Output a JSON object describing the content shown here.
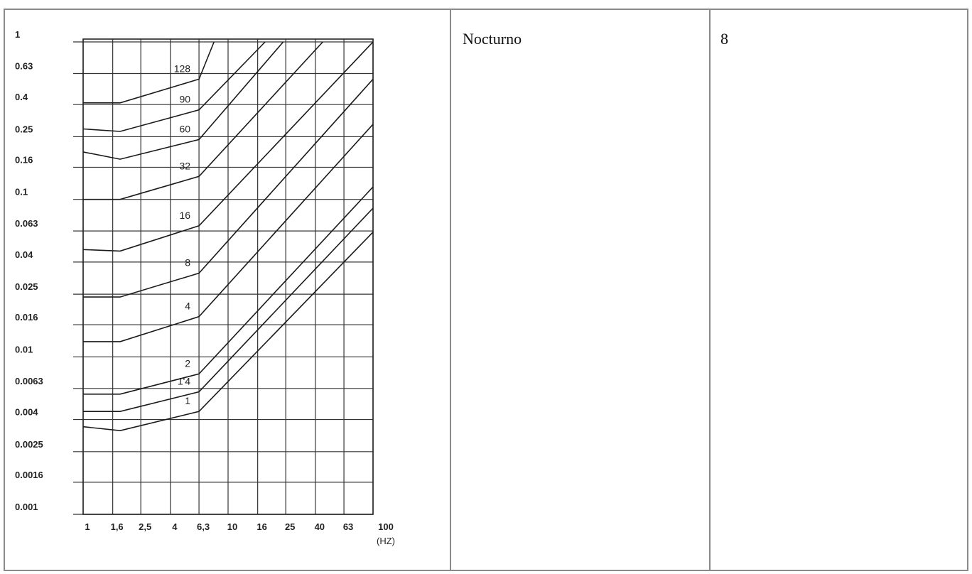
{
  "table": {
    "cells": [
      {
        "text": ""
      },
      {
        "text": "Nocturno"
      },
      {
        "text": "8"
      }
    ]
  },
  "chart_data": {
    "type": "line",
    "xscale": "log",
    "yscale": "log",
    "x_ticks": [
      "1",
      "1,6",
      "2,5",
      "4",
      "6,3",
      "10",
      "16",
      "25",
      "40",
      "63",
      "100"
    ],
    "x_tick_values": [
      1,
      1.6,
      2.5,
      4,
      6.3,
      10,
      16,
      25,
      40,
      63,
      100
    ],
    "y_ticks": [
      "1",
      "0.63",
      "0.4",
      "0.25",
      "0.16",
      "0.1",
      "0.063",
      "0.04",
      "0.025",
      "0.016",
      "0.01",
      "0.0063",
      "0.004",
      "0.0025",
      "0.0016",
      "0.001"
    ],
    "y_tick_values": [
      1,
      0.63,
      0.4,
      0.25,
      0.16,
      0.1,
      0.063,
      0.04,
      0.025,
      0.016,
      0.01,
      0.0063,
      0.004,
      0.0025,
      0.0016,
      0.001
    ],
    "xlim": [
      1,
      100
    ],
    "ylim": [
      0.001,
      1
    ],
    "xlabel": "(HZ)",
    "grid": true,
    "series": [
      {
        "name": "1",
        "points": [
          [
            1,
            0.0036
          ],
          [
            1.8,
            0.0034
          ],
          [
            6.3,
            0.0045
          ],
          [
            100,
            0.062
          ]
        ]
      },
      {
        "name": "1'4",
        "points": [
          [
            1,
            0.0045
          ],
          [
            1.8,
            0.0045
          ],
          [
            6.3,
            0.006
          ],
          [
            100,
            0.088
          ]
        ]
      },
      {
        "name": "2",
        "points": [
          [
            1,
            0.0058
          ],
          [
            1.8,
            0.0058
          ],
          [
            6.3,
            0.0078
          ],
          [
            100,
            0.12
          ]
        ]
      },
      {
        "name": "4",
        "points": [
          [
            1,
            0.0125
          ],
          [
            1.8,
            0.0125
          ],
          [
            6.3,
            0.018
          ],
          [
            100,
            0.3
          ]
        ]
      },
      {
        "name": "8",
        "points": [
          [
            1,
            0.024
          ],
          [
            1.8,
            0.024
          ],
          [
            6.3,
            0.034
          ],
          [
            100,
            0.58
          ]
        ]
      },
      {
        "name": "16",
        "points": [
          [
            1,
            0.048
          ],
          [
            1.8,
            0.047
          ],
          [
            6.3,
            0.068
          ],
          [
            100,
            1.0
          ]
        ]
      },
      {
        "name": "32",
        "points": [
          [
            1,
            0.1
          ],
          [
            1.8,
            0.1
          ],
          [
            6.3,
            0.14
          ],
          [
            45,
            1.0
          ]
        ]
      },
      {
        "name": "60",
        "points": [
          [
            1,
            0.2
          ],
          [
            1.8,
            0.18
          ],
          [
            6.3,
            0.24
          ],
          [
            24,
            1.0
          ]
        ]
      },
      {
        "name": "90",
        "points": [
          [
            1,
            0.28
          ],
          [
            1.8,
            0.27
          ],
          [
            6.3,
            0.37
          ],
          [
            18,
            1.0
          ]
        ]
      },
      {
        "name": "128",
        "points": [
          [
            1,
            0.41
          ],
          [
            1.8,
            0.41
          ],
          [
            6.3,
            0.58
          ],
          [
            8,
            1.0
          ]
        ]
      }
    ]
  }
}
